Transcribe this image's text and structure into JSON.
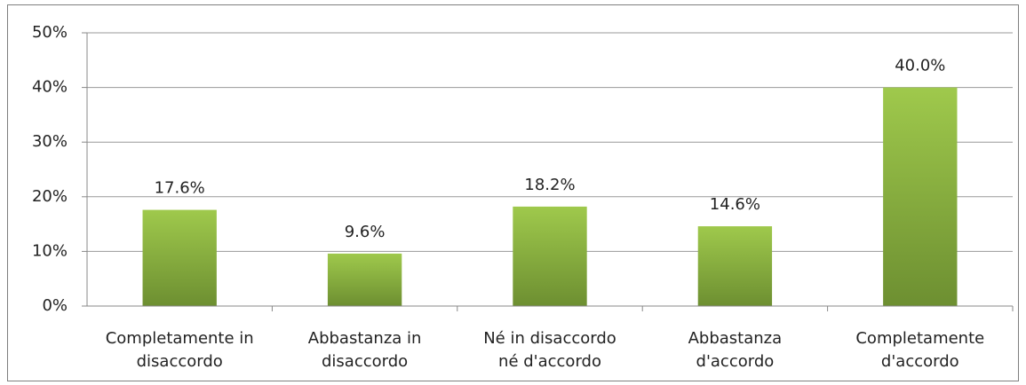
{
  "chart_data": {
    "type": "bar",
    "categories": [
      [
        "Completamente in",
        "disaccordo"
      ],
      [
        "Abbastanza in",
        "disaccordo"
      ],
      [
        "Né in disaccordo",
        "né d'accordo"
      ],
      [
        "Abbastanza",
        "d'accordo"
      ],
      [
        "Completamente",
        "d'accordo"
      ]
    ],
    "values": [
      17.6,
      9.6,
      18.2,
      14.6,
      40.0
    ],
    "value_labels": [
      "17.6%",
      "9.6%",
      "18.2%",
      "14.6%",
      "40.0%"
    ],
    "color": [
      "#9fc94c",
      "#6d8f31"
    ],
    "ylim": [
      0,
      50
    ],
    "yticks": [
      {
        "value": 0,
        "label": "0%"
      },
      {
        "value": 10,
        "label": "10%"
      },
      {
        "value": 20,
        "label": "20%"
      },
      {
        "value": 30,
        "label": "30%"
      },
      {
        "value": 40,
        "label": "40%"
      },
      {
        "value": 50,
        "label": "50%"
      }
    ],
    "grid": true
  }
}
